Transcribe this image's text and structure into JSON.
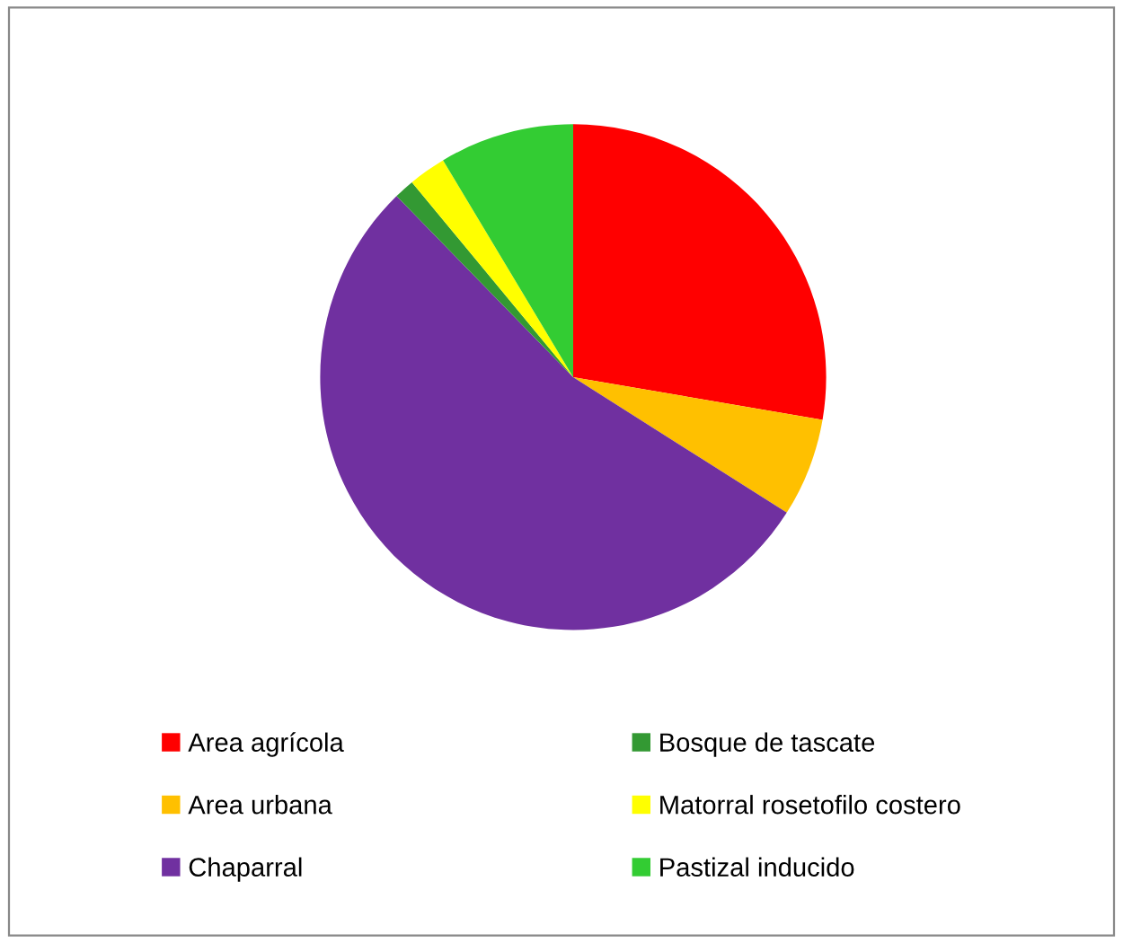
{
  "chart_data": {
    "type": "pie",
    "categories": [
      "Area agrícola",
      "Area urbana",
      "Chaparral",
      "Bosque de tascate",
      "Matorral rosetofilo costero",
      "Pastizal inducido"
    ],
    "values": [
      27.7,
      6.3,
      53.7,
      1.3,
      2.4,
      8.6
    ],
    "colors": [
      "#ff0000",
      "#ffc000",
      "#7030a0",
      "#339933",
      "#ffff00",
      "#33cc33"
    ],
    "legend": "bottom"
  }
}
